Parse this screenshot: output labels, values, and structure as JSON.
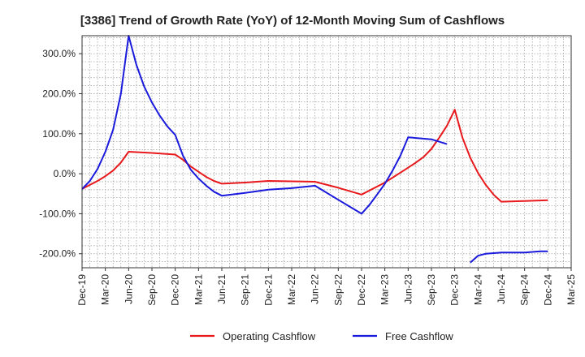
{
  "chart_data": {
    "type": "line",
    "title": "[3386]  Trend of Growth Rate (YoY) of 12-Month Moving Sum of Cashflows",
    "xlabel": "",
    "ylabel": "",
    "x_ticks": [
      "Dec-19",
      "Mar-20",
      "Jun-20",
      "Sep-20",
      "Dec-20",
      "Mar-21",
      "Jun-21",
      "Sep-21",
      "Dec-21",
      "Mar-22",
      "Jun-22",
      "Sep-22",
      "Dec-22",
      "Mar-23",
      "Jun-23",
      "Sep-23",
      "Dec-23",
      "Mar-24",
      "Jun-24",
      "Sep-24",
      "Dec-24",
      "Mar-25"
    ],
    "y_ticks": [
      "300.0%",
      "200.0%",
      "100.0%",
      "0.0%",
      "-100.0%",
      "-200.0%"
    ],
    "y_tick_values": [
      300,
      200,
      100,
      0,
      -100,
      -200
    ],
    "ylim": [
      -235,
      345
    ],
    "grid": true,
    "legend_position": "bottom",
    "series": [
      {
        "name": "Operating Cashflow",
        "color": "#e8191c",
        "points": [
          [
            "Dec-19",
            -38
          ],
          [
            "Jan-20",
            -28
          ],
          [
            "Feb-20",
            -18
          ],
          [
            "Mar-20",
            -6
          ],
          [
            "Apr-20",
            8
          ],
          [
            "May-20",
            28
          ],
          [
            "Jun-20",
            55
          ],
          [
            "Sep-20",
            52
          ],
          [
            "Dec-20",
            48
          ],
          [
            "Jan-21",
            35
          ],
          [
            "Feb-21",
            18
          ],
          [
            "Mar-21",
            5
          ],
          [
            "Apr-21",
            -8
          ],
          [
            "May-21",
            -18
          ],
          [
            "Jun-21",
            -25
          ],
          [
            "Sep-21",
            -22
          ],
          [
            "Dec-21",
            -18
          ],
          [
            "Mar-22",
            -19
          ],
          [
            "Jun-22",
            -20
          ],
          [
            "Sep-22",
            -35
          ],
          [
            "Dec-22",
            -52
          ],
          [
            "Mar-23",
            -22
          ],
          [
            "Jun-23",
            15
          ],
          [
            "Jul-23",
            28
          ],
          [
            "Aug-23",
            42
          ],
          [
            "Sep-23",
            62
          ],
          [
            "Oct-23",
            90
          ],
          [
            "Nov-23",
            120
          ],
          [
            "Dec-23",
            160
          ],
          [
            "Jan-24",
            90
          ],
          [
            "Feb-24",
            40
          ],
          [
            "Mar-24",
            2
          ],
          [
            "Apr-24",
            -28
          ],
          [
            "May-24",
            -52
          ],
          [
            "Jun-24",
            -70
          ],
          [
            "Sep-24",
            -68
          ],
          [
            "Dec-24",
            -66
          ]
        ]
      },
      {
        "name": "Free Cashflow",
        "color": "#1a1adc",
        "segments": [
          [
            [
              "Dec-19",
              -38
            ],
            [
              "Jan-20",
              -18
            ],
            [
              "Feb-20",
              12
            ],
            [
              "Mar-20",
              55
            ],
            [
              "Apr-20",
              110
            ],
            [
              "May-20",
              200
            ],
            [
              "Jun-20",
              345
            ],
            [
              "Jul-20",
              272
            ],
            [
              "Aug-20",
              218
            ],
            [
              "Sep-20",
              178
            ],
            [
              "Oct-20",
              145
            ],
            [
              "Nov-20",
              118
            ],
            [
              "Dec-20",
              97
            ],
            [
              "Jan-21",
              45
            ],
            [
              "Feb-21",
              10
            ],
            [
              "Mar-21",
              -12
            ],
            [
              "Apr-21",
              -30
            ],
            [
              "May-21",
              -45
            ],
            [
              "Jun-21",
              -55
            ],
            [
              "Sep-21",
              -48
            ],
            [
              "Dec-21",
              -40
            ],
            [
              "Mar-22",
              -36
            ],
            [
              "Jun-22",
              -30
            ],
            [
              "Sep-22",
              -65
            ],
            [
              "Dec-22",
              -100
            ],
            [
              "Jan-23",
              -78
            ],
            [
              "Feb-23",
              -52
            ],
            [
              "Mar-23",
              -25
            ],
            [
              "Apr-23",
              8
            ],
            [
              "May-23",
              45
            ],
            [
              "Jun-23",
              91
            ],
            [
              "Sep-23",
              86
            ],
            [
              "Nov-23",
              74
            ]
          ],
          [
            [
              "Feb-24",
              -222
            ],
            [
              "Mar-24",
              -205
            ],
            [
              "Apr-24",
              -200
            ],
            [
              "Jun-24",
              -197
            ],
            [
              "Sep-24",
              -197
            ],
            [
              "Nov-24",
              -194
            ],
            [
              "Dec-24",
              -194
            ]
          ]
        ]
      }
    ]
  }
}
